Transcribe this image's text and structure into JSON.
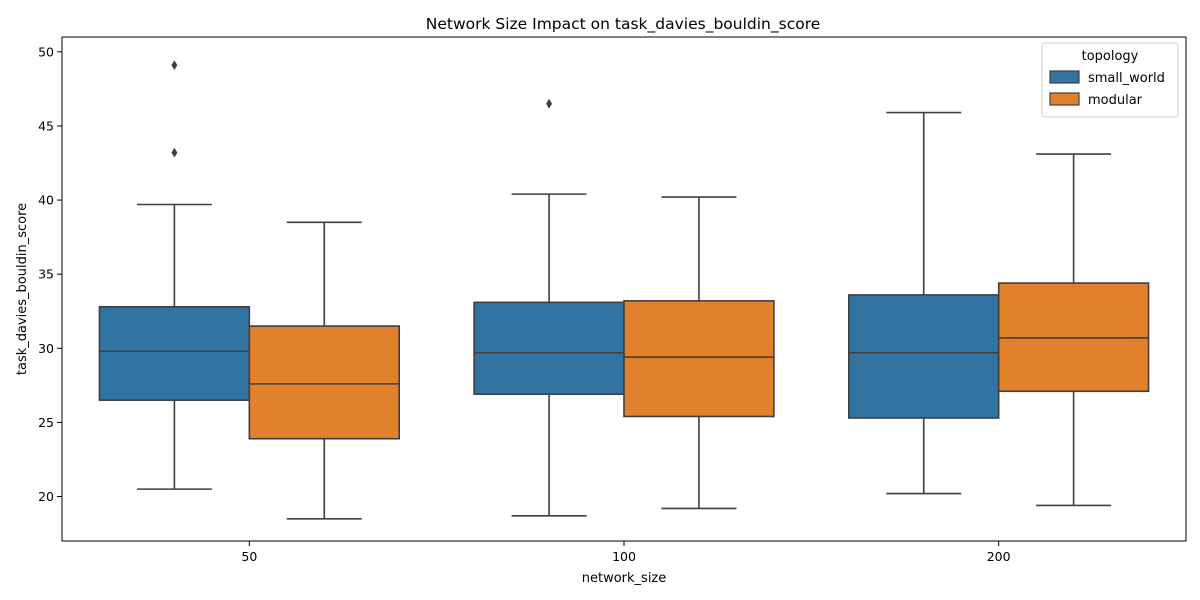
{
  "chart_data": {
    "type": "box",
    "title": "Network Size Impact on task_davies_bouldin_score",
    "xlabel": "network_size",
    "ylabel": "task_davies_bouldin_score",
    "categories": [
      "50",
      "100",
      "200"
    ],
    "ylim": [
      17.0,
      51.0
    ],
    "yticks": [
      20,
      25,
      30,
      35,
      40,
      45,
      50
    ],
    "grid": false,
    "legend": {
      "title": "topology",
      "position": "top-right"
    },
    "series": [
      {
        "name": "small_world",
        "color": "#3274a1",
        "boxes": [
          {
            "category": "50",
            "whisker_low": 20.5,
            "q1": 26.5,
            "median": 29.8,
            "q3": 32.8,
            "whisker_high": 39.7,
            "outliers": [
              43.2,
              49.1
            ]
          },
          {
            "category": "100",
            "whisker_low": 18.7,
            "q1": 26.9,
            "median": 29.7,
            "q3": 33.1,
            "whisker_high": 40.4,
            "outliers": [
              46.5
            ]
          },
          {
            "category": "200",
            "whisker_low": 20.2,
            "q1": 25.3,
            "median": 29.7,
            "q3": 33.6,
            "whisker_high": 45.9,
            "outliers": []
          }
        ]
      },
      {
        "name": "modular",
        "color": "#e1812c",
        "boxes": [
          {
            "category": "50",
            "whisker_low": 18.5,
            "q1": 23.9,
            "median": 27.6,
            "q3": 31.5,
            "whisker_high": 38.5,
            "outliers": []
          },
          {
            "category": "100",
            "whisker_low": 19.2,
            "q1": 25.4,
            "median": 29.4,
            "q3": 33.2,
            "whisker_high": 40.2,
            "outliers": []
          },
          {
            "category": "200",
            "whisker_low": 19.4,
            "q1": 27.1,
            "median": 30.7,
            "q3": 34.4,
            "whisker_high": 43.1,
            "outliers": []
          }
        ]
      }
    ]
  }
}
